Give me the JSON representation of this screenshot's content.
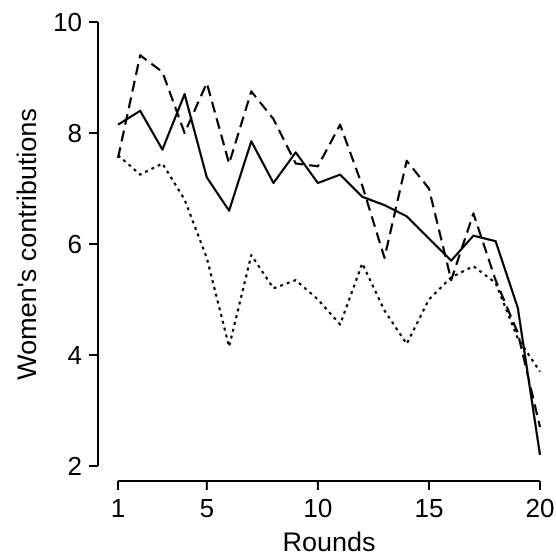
{
  "chart_data": {
    "type": "line",
    "xlabel": "Rounds",
    "ylabel": "Women's contributions",
    "xlim": [
      1,
      20
    ],
    "ylim": [
      2,
      10
    ],
    "xticks": [
      1,
      5,
      10,
      15,
      20
    ],
    "yticks": [
      2,
      4,
      6,
      8,
      10
    ],
    "grid": false,
    "x": [
      1,
      2,
      3,
      4,
      5,
      6,
      7,
      8,
      9,
      10,
      11,
      12,
      13,
      14,
      15,
      16,
      17,
      18,
      19,
      20
    ],
    "series": [
      {
        "style": "solid",
        "values": [
          8.15,
          8.4,
          7.7,
          8.7,
          7.2,
          6.6,
          7.85,
          7.1,
          7.65,
          7.1,
          7.25,
          6.85,
          6.7,
          6.5,
          6.1,
          5.7,
          6.15,
          6.05,
          4.85,
          2.2
        ]
      },
      {
        "style": "dashed",
        "values": [
          7.55,
          9.4,
          9.1,
          8.0,
          8.9,
          7.45,
          8.75,
          8.25,
          7.45,
          7.4,
          8.15,
          7.05,
          5.75,
          7.5,
          7.0,
          5.35,
          6.55,
          5.35,
          4.4,
          2.7
        ]
      },
      {
        "style": "dotted",
        "values": [
          7.6,
          7.25,
          7.45,
          6.8,
          5.75,
          4.15,
          5.8,
          5.2,
          5.35,
          5.0,
          4.55,
          5.65,
          4.8,
          4.2,
          5.0,
          5.4,
          5.6,
          5.3,
          4.3,
          3.7
        ]
      }
    ]
  }
}
